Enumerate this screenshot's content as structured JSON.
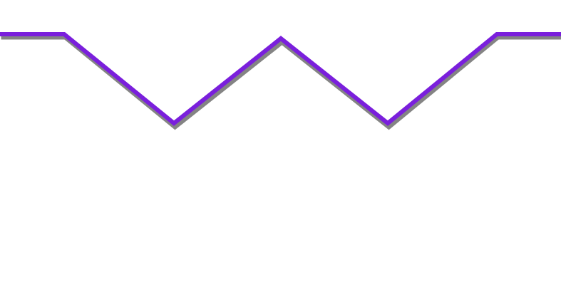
{
  "graphic": {
    "name": "zigzag divider",
    "line_color": "#7a1fdc",
    "shadow_color": "#6e6e6e",
    "background_color": "#ffffff",
    "vertices": 6
  }
}
